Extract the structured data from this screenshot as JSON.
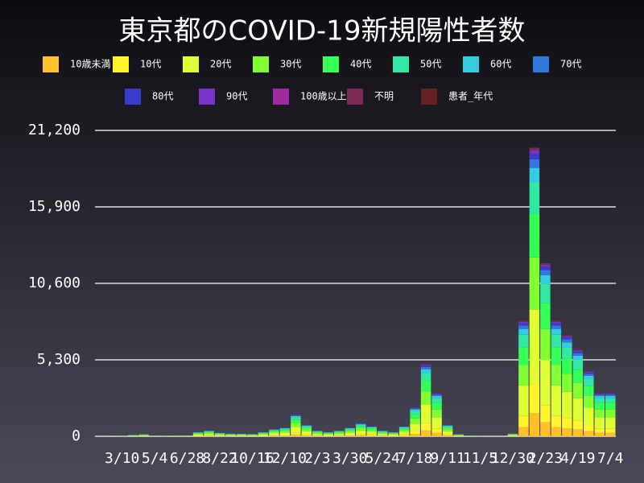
{
  "chart_data": {
    "type": "stacked_bar",
    "title": "東京都のCOVID-19新規陽性者数",
    "categories": [
      null,
      null,
      "3/10",
      null,
      null,
      "5/4",
      null,
      null,
      "6/28",
      null,
      null,
      "8/22",
      null,
      null,
      "10/16",
      null,
      null,
      "12/10",
      null,
      null,
      "2/3",
      null,
      null,
      "3/30",
      null,
      null,
      "5/24",
      null,
      null,
      "7/18",
      null,
      null,
      "9/11",
      null,
      null,
      "11/5",
      null,
      null,
      "12/30",
      null,
      null,
      "2/23",
      null,
      null,
      "4/19",
      null,
      null,
      "7/4"
    ],
    "ylim": [
      0,
      21200
    ],
    "yticks": [
      0,
      {
        "value": 5300,
        "label": "5,300"
      },
      {
        "value": 10600,
        "label": "10,600"
      },
      {
        "value": 15900,
        "label": "15,900"
      },
      {
        "value": 21200,
        "label": "21,200"
      }
    ],
    "grid": true,
    "series": [
      {
        "name": "10歳未満",
        "color": "#ffc02a",
        "values": [
          0,
          1,
          2,
          8,
          12,
          4,
          2,
          4,
          5,
          24,
          32,
          20,
          16,
          14,
          14,
          24,
          40,
          48,
          120,
          64,
          32,
          24,
          32,
          48,
          72,
          56,
          32,
          24,
          56,
          160,
          400,
          240,
          64,
          12,
          3,
          2,
          2,
          2,
          16,
          640,
          1600,
          960,
          640,
          560,
          480,
          360,
          240,
          240
        ]
      },
      {
        "name": "10代",
        "color": "#fff52a",
        "values": [
          0,
          1,
          3,
          10,
          15,
          5,
          3,
          5,
          6,
          30,
          40,
          25,
          20,
          18,
          17,
          30,
          50,
          60,
          150,
          80,
          40,
          30,
          40,
          60,
          90,
          70,
          40,
          30,
          70,
          200,
          500,
          300,
          80,
          15,
          4,
          3,
          2,
          2,
          20,
          800,
          2000,
          1200,
          800,
          700,
          600,
          450,
          300,
          300
        ]
      },
      {
        "name": "20代",
        "color": "#e0ff33",
        "values": [
          0,
          3,
          8,
          26,
          39,
          13,
          8,
          13,
          16,
          78,
          104,
          65,
          52,
          47,
          44,
          78,
          130,
          156,
          390,
          208,
          104,
          78,
          104,
          156,
          234,
          182,
          104,
          78,
          182,
          520,
          1300,
          780,
          208,
          39,
          10,
          8,
          5,
          5,
          52,
          2080,
          5200,
          3120,
          2080,
          1820,
          1560,
          1170,
          780,
          780
        ]
      },
      {
        "name": "30代",
        "color": "#80ff33",
        "values": [
          0,
          2,
          5,
          18,
          27,
          9,
          5,
          9,
          11,
          54,
          72,
          45,
          36,
          32,
          31,
          54,
          90,
          108,
          270,
          144,
          72,
          54,
          72,
          108,
          162,
          126,
          72,
          54,
          126,
          360,
          900,
          540,
          144,
          27,
          7,
          5,
          4,
          4,
          36,
          1440,
          3600,
          2160,
          1440,
          1260,
          1080,
          810,
          540,
          540
        ]
      },
      {
        "name": "40代",
        "color": "#33ff55",
        "values": [
          0,
          1,
          5,
          15,
          23,
          8,
          5,
          8,
          9,
          45,
          60,
          38,
          30,
          27,
          25,
          45,
          75,
          90,
          225,
          120,
          60,
          45,
          60,
          90,
          135,
          105,
          60,
          45,
          105,
          300,
          750,
          450,
          120,
          23,
          6,
          5,
          3,
          3,
          30,
          1200,
          3000,
          1800,
          1200,
          1050,
          900,
          675,
          450,
          450
        ]
      },
      {
        "name": "50代",
        "color": "#33e8a0",
        "values": [
          0,
          1,
          3,
          11,
          16,
          5,
          3,
          5,
          6,
          33,
          44,
          27,
          22,
          20,
          19,
          33,
          55,
          66,
          165,
          88,
          44,
          33,
          44,
          66,
          99,
          77,
          44,
          33,
          77,
          220,
          550,
          330,
          88,
          16,
          4,
          3,
          2,
          2,
          22,
          880,
          2200,
          1320,
          880,
          770,
          660,
          495,
          330,
          330
        ]
      },
      {
        "name": "60代",
        "color": "#33cce0",
        "values": [
          0,
          1,
          2,
          5,
          8,
          3,
          2,
          3,
          3,
          15,
          20,
          13,
          10,
          9,
          9,
          15,
          25,
          30,
          75,
          40,
          20,
          15,
          20,
          30,
          45,
          35,
          20,
          15,
          35,
          100,
          250,
          150,
          40,
          8,
          2,
          2,
          1,
          1,
          10,
          400,
          1000,
          600,
          400,
          350,
          300,
          225,
          150,
          150
        ]
      },
      {
        "name": "70代",
        "color": "#3377dd",
        "values": [
          0,
          0,
          1,
          3,
          4,
          1,
          1,
          1,
          2,
          9,
          12,
          8,
          6,
          6,
          5,
          9,
          15,
          18,
          45,
          24,
          12,
          9,
          12,
          18,
          27,
          21,
          12,
          9,
          21,
          60,
          150,
          90,
          24,
          4,
          2,
          1,
          1,
          1,
          6,
          240,
          600,
          360,
          240,
          210,
          180,
          135,
          90,
          90
        ]
      },
      {
        "name": "80代",
        "color": "#3a3acc",
        "values": [
          0,
          0,
          1,
          2,
          3,
          1,
          1,
          1,
          1,
          6,
          8,
          5,
          4,
          4,
          3,
          6,
          10,
          12,
          30,
          16,
          8,
          6,
          8,
          12,
          18,
          14,
          8,
          6,
          14,
          40,
          100,
          60,
          16,
          3,
          1,
          1,
          0,
          0,
          4,
          160,
          400,
          240,
          160,
          140,
          120,
          90,
          60,
          60
        ]
      },
      {
        "name": "90代",
        "color": "#7733cc",
        "values": [
          0,
          0,
          0,
          1,
          2,
          1,
          0,
          1,
          1,
          3,
          4,
          2,
          2,
          2,
          2,
          3,
          5,
          6,
          15,
          8,
          4,
          3,
          4,
          6,
          9,
          7,
          4,
          3,
          7,
          20,
          50,
          30,
          8,
          2,
          1,
          0,
          0,
          0,
          2,
          80,
          200,
          120,
          80,
          70,
          60,
          45,
          30,
          30
        ]
      },
      {
        "name": "100歳以上",
        "color": "#a02aa0",
        "values": [
          0,
          0,
          0,
          0,
          0,
          0,
          0,
          0,
          0,
          0,
          0,
          0,
          0,
          0,
          0,
          0,
          0,
          0,
          0,
          0,
          0,
          0,
          0,
          0,
          0,
          0,
          0,
          0,
          0,
          0,
          0,
          0,
          0,
          0,
          0,
          0,
          0,
          0,
          0,
          0,
          0,
          0,
          0,
          0,
          0,
          0,
          0,
          0
        ]
      },
      {
        "name": "不明",
        "color": "#7a2a55",
        "values": [
          0,
          0,
          0,
          1,
          1,
          0,
          0,
          0,
          0,
          3,
          4,
          2,
          2,
          1,
          1,
          3,
          5,
          6,
          15,
          8,
          4,
          3,
          4,
          6,
          9,
          7,
          4,
          3,
          7,
          20,
          50,
          30,
          8,
          1,
          0,
          0,
          0,
          0,
          2,
          80,
          200,
          120,
          80,
          70,
          60,
          45,
          30,
          30
        ]
      },
      {
        "name": "患者_年代",
        "color": "#662222",
        "values": [
          0,
          0,
          0,
          0,
          0,
          0,
          0,
          0,
          0,
          0,
          0,
          0,
          0,
          0,
          0,
          0,
          0,
          0,
          0,
          0,
          0,
          0,
          0,
          0,
          0,
          0,
          0,
          0,
          0,
          0,
          0,
          0,
          0,
          0,
          0,
          0,
          0,
          0,
          0,
          0,
          0,
          0,
          0,
          0,
          0,
          0,
          0,
          0
        ]
      }
    ]
  }
}
